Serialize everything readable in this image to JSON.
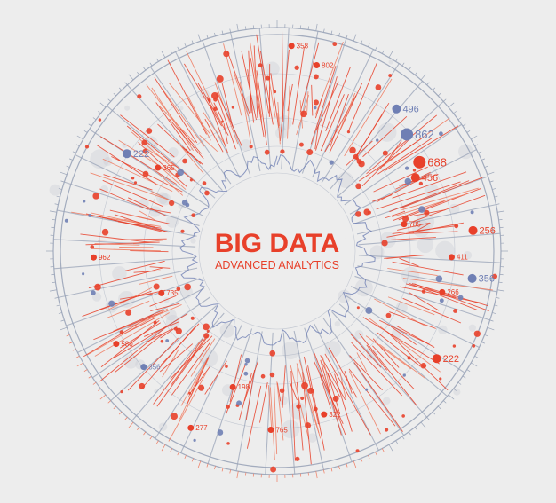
{
  "center": {
    "title": "BIG DATA",
    "subtitle": "ADVANCED ANALYTICS"
  },
  "colors": {
    "background": "#ededed",
    "accent": "#e8402a",
    "accent_light": "#f07a5f",
    "blue": "#6f7fb4",
    "gray_line": "#9aa4b8",
    "dot_gray": "#c9ccd4"
  },
  "labels": [
    {
      "text": "862",
      "angle": 48,
      "r": 0.78,
      "size": "large",
      "color": "blue"
    },
    {
      "text": "688",
      "angle": 58,
      "r": 0.75,
      "size": "large",
      "color": "red"
    },
    {
      "text": "456",
      "angle": 62,
      "r": 0.7,
      "size": "medium",
      "color": "red"
    },
    {
      "text": "496",
      "angle": 40,
      "r": 0.83,
      "size": "medium",
      "color": "blue"
    },
    {
      "text": "256",
      "angle": 84,
      "r": 0.88,
      "size": "medium",
      "color": "red"
    },
    {
      "text": "411",
      "angle": 92,
      "r": 0.78,
      "size": "small",
      "color": "red"
    },
    {
      "text": "356",
      "angle": 98,
      "r": 0.88,
      "size": "medium",
      "color": "blue"
    },
    {
      "text": "266",
      "angle": 104,
      "r": 0.76,
      "size": "small",
      "color": "red"
    },
    {
      "text": "222",
      "angle": 124,
      "r": 0.86,
      "size": "medium",
      "color": "red"
    },
    {
      "text": "222",
      "angle": 303,
      "r": 0.8,
      "size": "medium",
      "color": "blue"
    },
    {
      "text": "365",
      "angle": 305,
      "r": 0.65,
      "size": "small",
      "color": "red"
    },
    {
      "text": "962",
      "angle": 268,
      "r": 0.82,
      "size": "small",
      "color": "red"
    },
    {
      "text": "735",
      "angle": 250,
      "r": 0.55,
      "size": "small",
      "color": "red"
    },
    {
      "text": "580",
      "angle": 240,
      "r": 0.83,
      "size": "small",
      "color": "red"
    },
    {
      "text": "356",
      "angle": 229,
      "r": 0.79,
      "size": "small",
      "color": "blue"
    },
    {
      "text": "198",
      "angle": 198,
      "r": 0.64,
      "size": "small",
      "color": "red"
    },
    {
      "text": "277",
      "angle": 206,
      "r": 0.88,
      "size": "small",
      "color": "red"
    },
    {
      "text": "765",
      "angle": 182,
      "r": 0.8,
      "size": "small",
      "color": "red"
    },
    {
      "text": "322",
      "angle": 164,
      "r": 0.76,
      "size": "small",
      "color": "red"
    },
    {
      "text": "802",
      "angle": 12,
      "r": 0.85,
      "size": "small",
      "color": "red"
    },
    {
      "text": "358",
      "angle": 4,
      "r": 0.92,
      "size": "small",
      "color": "red"
    },
    {
      "text": "785",
      "angle": 78,
      "r": 0.58,
      "size": "small",
      "color": "red"
    }
  ]
}
